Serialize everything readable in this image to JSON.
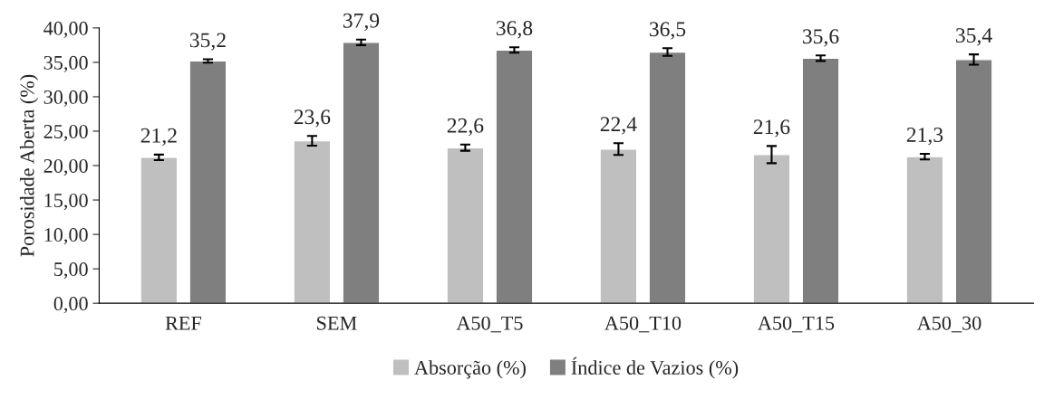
{
  "chart_data": {
    "type": "bar",
    "ylabel": "Porosidade Aberta (%)",
    "categories": [
      "REF",
      "SEM",
      "A50_T5",
      "A50_T10",
      "A50_T15",
      "A50_30"
    ],
    "series": [
      {
        "name": "Absorção (%)",
        "color": "#bfbfbf",
        "values": [
          21.2,
          23.6,
          22.6,
          22.4,
          21.6,
          21.3
        ],
        "errors": [
          0.4,
          0.7,
          0.45,
          0.85,
          1.25,
          0.4
        ],
        "value_labels": [
          "21,2",
          "23,6",
          "22,6",
          "22,4",
          "21,6",
          "21,3"
        ]
      },
      {
        "name": "Índice de Vazios (%)",
        "color": "#7f7f7f",
        "values": [
          35.2,
          37.9,
          36.8,
          36.5,
          35.6,
          35.4
        ],
        "errors": [
          0.25,
          0.4,
          0.4,
          0.55,
          0.4,
          0.75
        ],
        "value_labels": [
          "35,2",
          "37,9",
          "36,8",
          "36,5",
          "35,6",
          "35,4"
        ]
      }
    ],
    "ylim": [
      0,
      40
    ],
    "yticks": [
      {
        "value": 0,
        "label": "0,00"
      },
      {
        "value": 5,
        "label": "5,00"
      },
      {
        "value": 10,
        "label": "10,00"
      },
      {
        "value": 15,
        "label": "15,00"
      },
      {
        "value": 20,
        "label": "20,00"
      },
      {
        "value": 25,
        "label": "25,00"
      },
      {
        "value": 30,
        "label": "30,00"
      },
      {
        "value": 35,
        "label": "35,00"
      },
      {
        "value": 40,
        "label": "40,00"
      }
    ],
    "grid": false,
    "legend": "bottom"
  }
}
